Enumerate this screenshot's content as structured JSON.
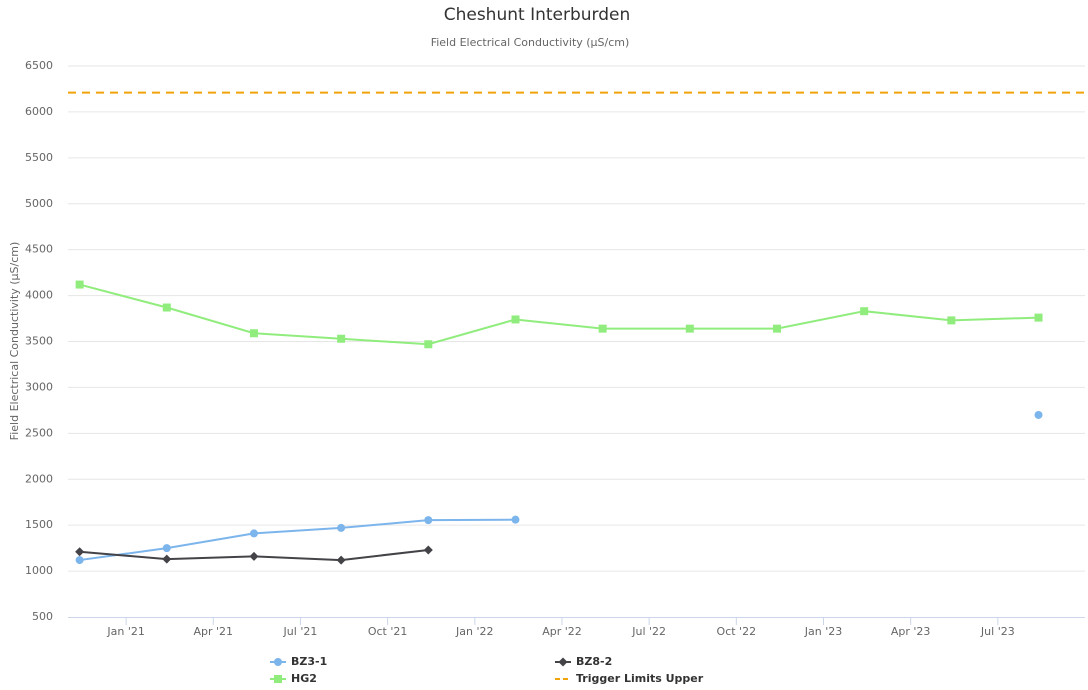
{
  "chart_data": {
    "type": "line",
    "title": "Cheshunt Interburden",
    "subtitle": "Field Electrical Conductivity (µS/cm)",
    "y_label": "Field Electrical Conductivity (µS/cm)",
    "x": [
      "2020-11",
      "2021-02",
      "2021-05",
      "2021-08",
      "2021-11",
      "2022-02",
      "2022-05",
      "2022-08",
      "2022-11",
      "2023-02",
      "2023-05",
      "2023-08"
    ],
    "xlim": [
      "2020-11",
      "2023-10"
    ],
    "xticks": [
      {
        "value": "2021-01",
        "label": "Jan '21"
      },
      {
        "value": "2021-04",
        "label": "Apr '21"
      },
      {
        "value": "2021-07",
        "label": "Jul '21"
      },
      {
        "value": "2021-10",
        "label": "Oct '21"
      },
      {
        "value": "2022-01",
        "label": "Jan '22"
      },
      {
        "value": "2022-04",
        "label": "Apr '22"
      },
      {
        "value": "2022-07",
        "label": "Jul '22"
      },
      {
        "value": "2022-10",
        "label": "Oct '22"
      },
      {
        "value": "2023-01",
        "label": "Jan '23"
      },
      {
        "value": "2023-04",
        "label": "Apr '23"
      },
      {
        "value": "2023-07",
        "label": "Jul '23"
      }
    ],
    "ylim": [
      500,
      6500
    ],
    "yticks": [
      500,
      1000,
      1500,
      2000,
      2500,
      3000,
      3500,
      4000,
      4500,
      5000,
      5500,
      6000,
      6500
    ],
    "grid": true,
    "series": [
      {
        "name": "BZ3-1",
        "color": "#7cb5ec",
        "marker": "circle",
        "values": [
          1120,
          1250,
          1410,
          1470,
          1555,
          1560,
          null,
          null,
          null,
          null,
          null,
          2700
        ]
      },
      {
        "name": "BZ8-2",
        "color": "#434348",
        "marker": "diamond",
        "values": [
          1210,
          1130,
          1160,
          1120,
          1230,
          null,
          null,
          null,
          null,
          null,
          null,
          null
        ]
      },
      {
        "name": "HG2",
        "color": "#90ed7d",
        "marker": "square",
        "values": [
          4120,
          3870,
          3590,
          3530,
          3470,
          3740,
          3640,
          3640,
          3640,
          3830,
          3730,
          3760
        ]
      }
    ],
    "plot_lines": [
      {
        "name": "Trigger Limits Upper",
        "color": "#f0a30a",
        "value": 6210
      }
    ]
  }
}
